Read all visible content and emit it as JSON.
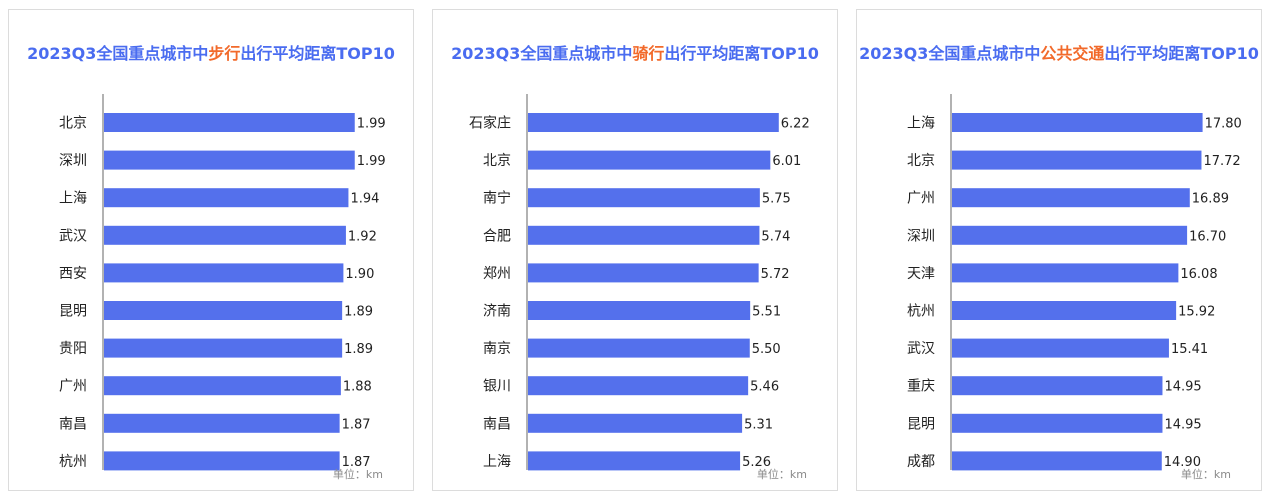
{
  "colors": {
    "bar": "#5470ec",
    "title": "#4a6cf0",
    "highlight": "#f26a2b",
    "axis": "#666666"
  },
  "chart_data": [
    {
      "type": "bar",
      "orientation": "horizontal",
      "title_prefix": "2023Q3全国重点城市中",
      "title_highlight": "步行",
      "title_suffix": "出行平均距离TOP10",
      "unit": "单位：km",
      "categories": [
        "北京",
        "深圳",
        "上海",
        "武汉",
        "西安",
        "昆明",
        "贵阳",
        "广州",
        "南昌",
        "杭州"
      ],
      "values": [
        1.99,
        1.99,
        1.94,
        1.92,
        1.9,
        1.89,
        1.89,
        1.88,
        1.87,
        1.87
      ],
      "labels": [
        "1.99",
        "1.99",
        "1.94",
        "1.92",
        "1.90",
        "1.89",
        "1.89",
        "1.88",
        "1.87",
        "1.87"
      ],
      "xlim": [
        0,
        2.0
      ]
    },
    {
      "type": "bar",
      "orientation": "horizontal",
      "title_prefix": "2023Q3全国重点城市中",
      "title_highlight": "骑行",
      "title_suffix": "出行平均距离TOP10",
      "unit": "单位：km",
      "categories": [
        "石家庄",
        "北京",
        "南宁",
        "合肥",
        "郑州",
        "济南",
        "南京",
        "银川",
        "南昌",
        "上海"
      ],
      "values": [
        6.22,
        6.01,
        5.75,
        5.74,
        5.72,
        5.51,
        5.5,
        5.46,
        5.31,
        5.26
      ],
      "labels": [
        "6.22",
        "6.01",
        "5.75",
        "5.74",
        "5.72",
        "5.51",
        "5.50",
        "5.46",
        "5.31",
        "5.26"
      ],
      "xlim": [
        0,
        6.25
      ]
    },
    {
      "type": "bar",
      "orientation": "horizontal",
      "title_prefix": "2023Q3全国重点城市中",
      "title_highlight": "公共交通",
      "title_suffix": "出行平均距离TOP10",
      "unit": "单位：km",
      "categories": [
        "上海",
        "北京",
        "广州",
        "深圳",
        "天津",
        "杭州",
        "武汉",
        "重庆",
        "昆明",
        "成都"
      ],
      "values": [
        17.8,
        17.72,
        16.89,
        16.7,
        16.08,
        15.92,
        15.41,
        14.95,
        14.95,
        14.9
      ],
      "labels": [
        "17.80",
        "17.72",
        "16.89",
        "16.70",
        "16.08",
        "15.92",
        "15.41",
        "14.95",
        "14.95",
        "14.90"
      ],
      "xlim": [
        0,
        17.9
      ]
    }
  ]
}
